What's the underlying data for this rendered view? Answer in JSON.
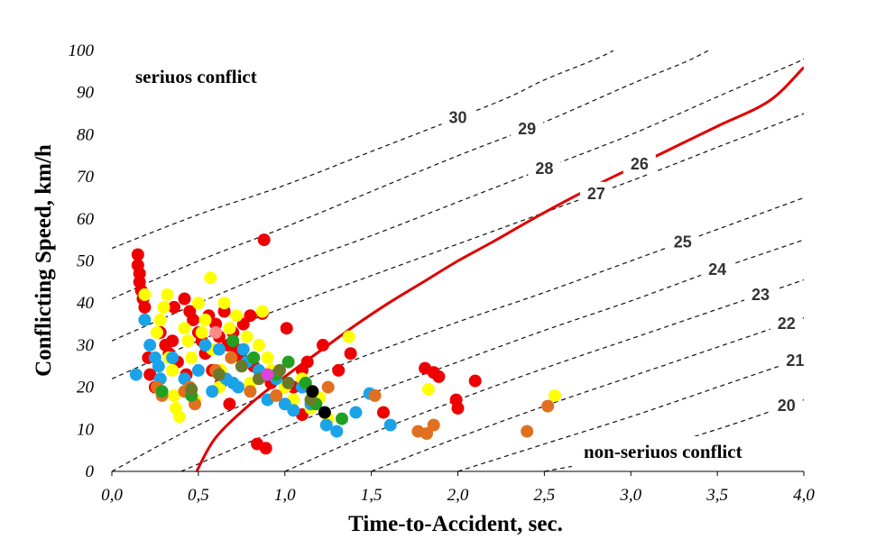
{
  "chart_data": {
    "type": "scatter",
    "title": "",
    "xlabel": "Time-to-Accident, sec.",
    "ylabel": "Conflicting Speed, km/h",
    "xlim": [
      0.0,
      4.0
    ],
    "ylim": [
      0,
      100
    ],
    "x_ticks": [
      "0,0",
      "0,5",
      "1,0",
      "1,5",
      "2,0",
      "2,5",
      "3,0",
      "3,5",
      "4,0"
    ],
    "y_ticks": [
      "0",
      "10",
      "20",
      "30",
      "40",
      "50",
      "60",
      "70",
      "80",
      "90",
      "100"
    ],
    "grid": false,
    "region_labels": {
      "serious": "seriuos  conflict",
      "non_serious": "non-seriuos  conflict"
    },
    "threshold_line": {
      "label": "26",
      "color": "#e00000",
      "points": [
        [
          0.49,
          0
        ],
        [
          0.6,
          8
        ],
        [
          0.8,
          16
        ],
        [
          1.0,
          22.5
        ],
        [
          1.2,
          28.5
        ],
        [
          1.4,
          34.5
        ],
        [
          1.6,
          40
        ],
        [
          1.8,
          45
        ],
        [
          2.0,
          50
        ],
        [
          2.2,
          54.5
        ],
        [
          2.5,
          61.5
        ],
        [
          2.8,
          68
        ],
        [
          3.0,
          72
        ],
        [
          3.2,
          76
        ],
        [
          3.5,
          82
        ],
        [
          3.8,
          88
        ],
        [
          4.0,
          96
        ]
      ]
    },
    "ttc_contours": [
      {
        "label": "30",
        "points": [
          [
            0,
            53
          ],
          [
            0.5,
            61
          ],
          [
            1.0,
            68
          ],
          [
            1.5,
            76
          ],
          [
            2.0,
            84
          ],
          [
            2.3,
            89
          ],
          [
            2.5,
            93
          ],
          [
            2.8,
            98
          ],
          [
            2.9,
            100
          ]
        ]
      },
      {
        "label": "29",
        "points": [
          [
            0,
            41
          ],
          [
            0.5,
            50
          ],
          [
            1.0,
            58
          ],
          [
            1.5,
            66.5
          ],
          [
            2.0,
            75
          ],
          [
            2.5,
            83
          ],
          [
            3.0,
            92
          ],
          [
            3.3,
            97
          ],
          [
            3.45,
            100
          ]
        ]
      },
      {
        "label": "28",
        "points": [
          [
            0,
            31
          ],
          [
            0.5,
            40
          ],
          [
            1.0,
            48.5
          ],
          [
            1.5,
            56
          ],
          [
            2.0,
            64
          ],
          [
            2.5,
            72
          ],
          [
            3.0,
            80
          ],
          [
            3.5,
            89
          ],
          [
            3.95,
            97
          ],
          [
            4.0,
            98
          ]
        ]
      },
      {
        "label": "27",
        "points": [
          [
            0,
            22
          ],
          [
            0.5,
            31
          ],
          [
            1.0,
            39
          ],
          [
            1.5,
            46.5
          ],
          [
            2.0,
            54
          ],
          [
            2.5,
            61.5
          ],
          [
            3.0,
            69
          ],
          [
            3.5,
            77
          ],
          [
            4.0,
            85
          ]
        ]
      },
      {
        "label": "25",
        "points": [
          [
            0.0,
            0
          ],
          [
            0.5,
            11
          ],
          [
            1.0,
            20
          ],
          [
            1.5,
            28
          ],
          [
            2.0,
            35.5
          ],
          [
            2.5,
            42.5
          ],
          [
            3.0,
            50
          ],
          [
            3.5,
            57.5
          ],
          [
            4.0,
            65
          ]
        ]
      },
      {
        "label": "24",
        "points": [
          [
            0.4,
            0
          ],
          [
            1.0,
            10.5
          ],
          [
            1.5,
            18.5
          ],
          [
            2.0,
            26
          ],
          [
            2.5,
            33.5
          ],
          [
            3.0,
            40.5
          ],
          [
            3.5,
            48
          ],
          [
            4.0,
            55
          ]
        ]
      },
      {
        "label": "23",
        "points": [
          [
            1.0,
            0
          ],
          [
            1.5,
            9
          ],
          [
            2.0,
            17
          ],
          [
            2.5,
            24.5
          ],
          [
            3.0,
            31.5
          ],
          [
            3.5,
            38.5
          ],
          [
            4.0,
            45.5
          ]
        ]
      },
      {
        "label": "22",
        "points": [
          [
            1.5,
            0
          ],
          [
            2.0,
            8
          ],
          [
            2.5,
            15.5
          ],
          [
            3.0,
            22.5
          ],
          [
            3.5,
            29.5
          ],
          [
            4.0,
            36.5
          ]
        ]
      },
      {
        "label": "21",
        "points": [
          [
            2.0,
            0
          ],
          [
            2.5,
            6.5
          ],
          [
            3.0,
            13
          ],
          [
            3.5,
            20
          ],
          [
            4.0,
            27
          ]
        ]
      },
      {
        "label": "20",
        "points": [
          [
            2.5,
            0
          ],
          [
            3.0,
            4
          ],
          [
            3.5,
            10
          ],
          [
            4.0,
            17
          ]
        ]
      }
    ],
    "series": [
      {
        "name": "red",
        "color": "#ee0000",
        "points": [
          [
            0.15,
            51.5
          ],
          [
            0.15,
            49
          ],
          [
            0.16,
            47
          ],
          [
            0.16,
            45
          ],
          [
            0.17,
            43
          ],
          [
            0.18,
            41
          ],
          [
            0.19,
            39
          ],
          [
            0.21,
            27
          ],
          [
            0.22,
            23
          ],
          [
            0.25,
            20
          ],
          [
            0.28,
            33
          ],
          [
            0.31,
            30
          ],
          [
            0.33,
            28
          ],
          [
            0.35,
            31
          ],
          [
            0.36,
            39
          ],
          [
            0.38,
            26
          ],
          [
            0.42,
            41
          ],
          [
            0.43,
            23
          ],
          [
            0.45,
            38
          ],
          [
            0.47,
            36
          ],
          [
            0.5,
            33
          ],
          [
            0.52,
            31
          ],
          [
            0.54,
            28
          ],
          [
            0.56,
            37
          ],
          [
            0.58,
            24
          ],
          [
            0.6,
            35
          ],
          [
            0.62,
            32
          ],
          [
            0.63,
            21
          ],
          [
            0.65,
            38
          ],
          [
            0.67,
            30
          ],
          [
            0.68,
            16
          ],
          [
            0.7,
            33
          ],
          [
            0.72,
            29
          ],
          [
            0.75,
            27
          ],
          [
            0.76,
            35
          ],
          [
            0.8,
            37
          ],
          [
            0.82,
            25
          ],
          [
            0.84,
            6.5
          ],
          [
            0.87,
            37.5
          ],
          [
            0.88,
            55
          ],
          [
            0.89,
            5.5
          ],
          [
            0.92,
            21
          ],
          [
            0.95,
            23
          ],
          [
            1.01,
            34
          ],
          [
            1.05,
            20
          ],
          [
            1.1,
            24
          ],
          [
            1.1,
            13.5
          ],
          [
            1.13,
            26
          ],
          [
            1.22,
            30
          ],
          [
            1.31,
            24
          ],
          [
            1.38,
            28
          ],
          [
            1.57,
            14
          ],
          [
            1.81,
            24.5
          ],
          [
            1.86,
            23.5
          ],
          [
            1.89,
            22.5
          ],
          [
            1.99,
            17
          ],
          [
            2.0,
            15
          ],
          [
            2.1,
            21.5
          ]
        ]
      },
      {
        "name": "yellow",
        "color": "#ffff00",
        "points": [
          [
            0.19,
            42
          ],
          [
            0.26,
            33
          ],
          [
            0.28,
            36
          ],
          [
            0.3,
            39
          ],
          [
            0.32,
            42
          ],
          [
            0.33,
            27
          ],
          [
            0.35,
            24
          ],
          [
            0.36,
            18
          ],
          [
            0.37,
            15
          ],
          [
            0.39,
            13
          ],
          [
            0.42,
            34
          ],
          [
            0.44,
            31
          ],
          [
            0.46,
            27
          ],
          [
            0.48,
            17
          ],
          [
            0.5,
            40
          ],
          [
            0.52,
            33
          ],
          [
            0.54,
            36
          ],
          [
            0.57,
            46
          ],
          [
            0.58,
            29
          ],
          [
            0.62,
            20
          ],
          [
            0.63,
            24
          ],
          [
            0.65,
            40
          ],
          [
            0.68,
            34
          ],
          [
            0.72,
            37
          ],
          [
            0.75,
            25
          ],
          [
            0.78,
            32
          ],
          [
            0.8,
            21
          ],
          [
            0.85,
            30
          ],
          [
            0.87,
            38
          ],
          [
            0.9,
            27
          ],
          [
            0.92,
            24
          ],
          [
            1.0,
            20
          ],
          [
            1.05,
            17
          ],
          [
            1.1,
            22
          ],
          [
            1.15,
            15
          ],
          [
            1.2,
            17.5
          ],
          [
            1.25,
            12.5
          ],
          [
            1.37,
            32
          ],
          [
            1.83,
            19.5
          ],
          [
            2.56,
            18
          ]
        ]
      },
      {
        "name": "blue",
        "color": "#1aa3e8",
        "points": [
          [
            0.14,
            23
          ],
          [
            0.19,
            36
          ],
          [
            0.22,
            30
          ],
          [
            0.25,
            27
          ],
          [
            0.27,
            25
          ],
          [
            0.28,
            22
          ],
          [
            0.35,
            27
          ],
          [
            0.42,
            22
          ],
          [
            0.5,
            24
          ],
          [
            0.54,
            30
          ],
          [
            0.58,
            19
          ],
          [
            0.62,
            29
          ],
          [
            0.66,
            22
          ],
          [
            0.7,
            21
          ],
          [
            0.73,
            20
          ],
          [
            0.76,
            29
          ],
          [
            0.78,
            26
          ],
          [
            0.85,
            24
          ],
          [
            0.9,
            17
          ],
          [
            0.95,
            22
          ],
          [
            1.0,
            16
          ],
          [
            1.05,
            14.5
          ],
          [
            1.1,
            20
          ],
          [
            1.15,
            16
          ],
          [
            1.24,
            11
          ],
          [
            1.3,
            9.5
          ],
          [
            1.41,
            14
          ],
          [
            1.49,
            18.5
          ],
          [
            1.61,
            11
          ]
        ]
      },
      {
        "name": "orange",
        "color": "#e07020",
        "points": [
          [
            0.26,
            20
          ],
          [
            0.29,
            18
          ],
          [
            0.42,
            19
          ],
          [
            0.45,
            20
          ],
          [
            0.48,
            16
          ],
          [
            0.6,
            24
          ],
          [
            0.69,
            27
          ],
          [
            0.8,
            19
          ],
          [
            0.95,
            18
          ],
          [
            1.25,
            20
          ],
          [
            1.52,
            18
          ],
          [
            1.77,
            9.5
          ],
          [
            1.82,
            9
          ],
          [
            1.86,
            11
          ],
          [
            2.4,
            9.5
          ],
          [
            2.52,
            15.5
          ]
        ]
      },
      {
        "name": "green",
        "color": "#22a022",
        "points": [
          [
            0.29,
            19
          ],
          [
            0.46,
            18
          ],
          [
            0.7,
            31
          ],
          [
            0.82,
            27
          ],
          [
            0.95,
            23
          ],
          [
            1.02,
            26
          ],
          [
            1.12,
            21
          ],
          [
            1.18,
            16
          ],
          [
            1.33,
            12.5
          ]
        ]
      },
      {
        "name": "olive",
        "color": "#6b7a2a",
        "points": [
          [
            0.46,
            19.5
          ],
          [
            0.62,
            23
          ],
          [
            0.75,
            25
          ],
          [
            0.85,
            22
          ],
          [
            0.97,
            24
          ],
          [
            1.02,
            21
          ],
          [
            1.15,
            17
          ]
        ]
      },
      {
        "name": "black",
        "color": "#000000",
        "points": [
          [
            1.16,
            19
          ],
          [
            1.23,
            14
          ]
        ]
      },
      {
        "name": "pink",
        "color": "#ff8888",
        "points": [
          [
            0.6,
            33
          ]
        ]
      },
      {
        "name": "magenta",
        "color": "#dd44dd",
        "points": [
          [
            0.9,
            23
          ]
        ]
      }
    ]
  }
}
